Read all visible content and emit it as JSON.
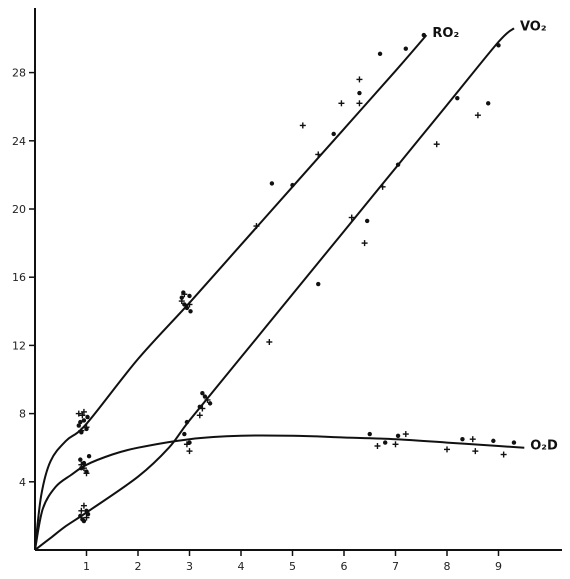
{
  "chart_data": {
    "type": "scatter",
    "title": "",
    "xlabel": "",
    "ylabel": "",
    "xlim": [
      0,
      10.3
    ],
    "ylim": [
      0,
      31.5
    ],
    "grid": false,
    "x_ticks": [
      "1",
      "2",
      "3",
      "4",
      "5",
      "6",
      "7",
      "8",
      "9"
    ],
    "x_tick_values": [
      1,
      2,
      3,
      4,
      5,
      6,
      7,
      8,
      9
    ],
    "y_ticks": [
      "4",
      "8",
      "12",
      "16",
      "20",
      "24",
      "28"
    ],
    "y_tick_values": [
      4,
      8,
      12,
      16,
      20,
      24,
      28
    ],
    "series": [
      {
        "name": "RO₂",
        "line": [
          [
            0,
            0
          ],
          [
            0.12,
            3.2
          ],
          [
            0.3,
            5.2
          ],
          [
            0.6,
            6.4
          ],
          [
            1.0,
            7.4
          ],
          [
            2.0,
            11.2
          ],
          [
            3.0,
            14.5
          ],
          [
            4.0,
            17.9
          ],
          [
            5.0,
            21.3
          ],
          [
            6.0,
            24.7
          ],
          [
            7.0,
            28.1
          ],
          [
            7.6,
            30.2
          ]
        ],
        "dots": [
          [
            0.85,
            7.3
          ],
          [
            0.95,
            7.6
          ],
          [
            1.0,
            7.1
          ],
          [
            0.9,
            6.9
          ],
          [
            1.02,
            7.8
          ],
          [
            0.88,
            7.5
          ],
          [
            2.85,
            14.8
          ],
          [
            2.95,
            14.2
          ],
          [
            3.0,
            14.9
          ],
          [
            2.9,
            14.4
          ],
          [
            3.02,
            14.0
          ],
          [
            2.88,
            15.1
          ],
          [
            4.6,
            21.5
          ],
          [
            5.0,
            21.4
          ],
          [
            5.8,
            24.4
          ],
          [
            6.3,
            26.8
          ],
          [
            6.7,
            29.1
          ],
          [
            7.2,
            29.4
          ],
          [
            7.55,
            30.2
          ]
        ],
        "crosses": [
          [
            0.85,
            8.0
          ],
          [
            0.95,
            8.1
          ],
          [
            1.0,
            7.2
          ],
          [
            0.9,
            7.0
          ],
          [
            0.92,
            7.9
          ],
          [
            2.9,
            15.0
          ],
          [
            3.0,
            14.4
          ],
          [
            2.85,
            14.6
          ],
          [
            4.3,
            19.0
          ],
          [
            5.2,
            24.9
          ],
          [
            5.5,
            23.2
          ],
          [
            5.95,
            26.2
          ],
          [
            6.3,
            27.6
          ],
          [
            6.3,
            26.2
          ]
        ]
      },
      {
        "name": "VO₂",
        "line": [
          [
            0,
            0
          ],
          [
            0.3,
            0.7
          ],
          [
            0.6,
            1.4
          ],
          [
            1.0,
            2.2
          ],
          [
            2.0,
            4.3
          ],
          [
            2.6,
            6.0
          ],
          [
            3.0,
            7.6
          ],
          [
            4.0,
            11.3
          ],
          [
            5.0,
            15.0
          ],
          [
            6.0,
            18.7
          ],
          [
            7.0,
            22.4
          ],
          [
            8.0,
            26.1
          ],
          [
            9.0,
            29.8
          ],
          [
            9.3,
            30.6
          ]
        ],
        "dots": [
          [
            0.88,
            2.0
          ],
          [
            0.95,
            1.7
          ],
          [
            1.0,
            2.3
          ],
          [
            0.92,
            1.8
          ],
          [
            1.03,
            2.1
          ],
          [
            2.95,
            7.5
          ],
          [
            3.2,
            8.4
          ],
          [
            3.3,
            9.0
          ],
          [
            3.4,
            8.6
          ],
          [
            3.25,
            9.2
          ],
          [
            5.5,
            15.6
          ],
          [
            6.45,
            19.3
          ],
          [
            7.05,
            22.6
          ],
          [
            8.2,
            26.5
          ],
          [
            8.8,
            26.2
          ],
          [
            9.0,
            29.6
          ]
        ],
        "crosses": [
          [
            0.9,
            2.3
          ],
          [
            1.0,
            1.9
          ],
          [
            0.95,
            2.6
          ],
          [
            3.25,
            8.3
          ],
          [
            3.35,
            8.8
          ],
          [
            3.2,
            7.9
          ],
          [
            4.55,
            12.2
          ],
          [
            6.15,
            19.5
          ],
          [
            6.4,
            18.0
          ],
          [
            6.75,
            21.3
          ],
          [
            7.8,
            23.8
          ],
          [
            8.6,
            25.5
          ]
        ]
      },
      {
        "name": "O₂D",
        "line": [
          [
            0,
            0
          ],
          [
            0.15,
            2.4
          ],
          [
            0.4,
            3.7
          ],
          [
            0.7,
            4.4
          ],
          [
            1.0,
            5.0
          ],
          [
            1.5,
            5.6
          ],
          [
            2.0,
            6.0
          ],
          [
            3.0,
            6.5
          ],
          [
            4.0,
            6.7
          ],
          [
            5.0,
            6.7
          ],
          [
            6.0,
            6.6
          ],
          [
            7.0,
            6.5
          ],
          [
            8.0,
            6.3
          ],
          [
            9.0,
            6.1
          ],
          [
            9.5,
            6.0
          ]
        ],
        "dots": [
          [
            0.9,
            4.8
          ],
          [
            0.95,
            5.1
          ],
          [
            1.0,
            4.6
          ],
          [
            0.88,
            5.3
          ],
          [
            1.05,
            5.5
          ],
          [
            2.9,
            6.8
          ],
          [
            3.0,
            6.3
          ],
          [
            6.5,
            6.8
          ],
          [
            6.8,
            6.3
          ],
          [
            7.05,
            6.7
          ],
          [
            8.3,
            6.5
          ],
          [
            8.9,
            6.4
          ],
          [
            9.3,
            6.3
          ]
        ],
        "crosses": [
          [
            0.9,
            5.0
          ],
          [
            1.0,
            4.5
          ],
          [
            0.95,
            4.8
          ],
          [
            3.0,
            5.8
          ],
          [
            2.95,
            6.2
          ],
          [
            6.65,
            6.1
          ],
          [
            7.0,
            6.2
          ],
          [
            7.2,
            6.8
          ],
          [
            8.0,
            5.9
          ],
          [
            8.5,
            6.5
          ],
          [
            8.55,
            5.8
          ],
          [
            9.1,
            5.6
          ]
        ]
      }
    ]
  }
}
